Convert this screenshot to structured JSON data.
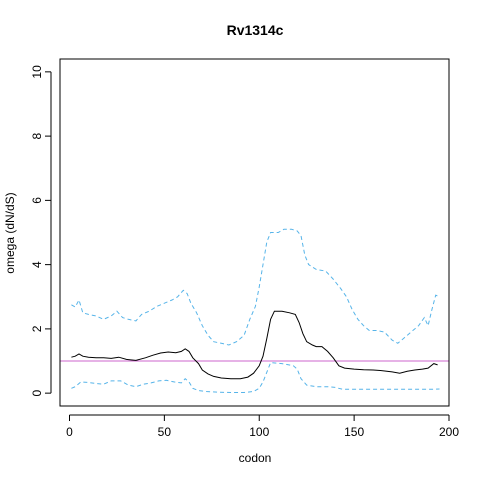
{
  "chart_data": {
    "type": "line",
    "title": "Rv1314c",
    "xlabel": "codon",
    "ylabel": "omega (dN/dS)",
    "xlim": [
      -5,
      200
    ],
    "ylim": [
      -0.4,
      10.4
    ],
    "xticks": [
      0,
      50,
      100,
      150,
      200
    ],
    "yticks": [
      0,
      2,
      4,
      6,
      8,
      10
    ],
    "reference_line": {
      "y": 1,
      "color": "#cc66cc"
    },
    "series": [
      {
        "role": "estimate",
        "color": "#000000",
        "dash": "solid",
        "points": [
          [
            1,
            1.12
          ],
          [
            3,
            1.15
          ],
          [
            5,
            1.22
          ],
          [
            7,
            1.15
          ],
          [
            10,
            1.12
          ],
          [
            14,
            1.1
          ],
          [
            18,
            1.1
          ],
          [
            22,
            1.08
          ],
          [
            26,
            1.12
          ],
          [
            30,
            1.05
          ],
          [
            35,
            1.02
          ],
          [
            40,
            1.1
          ],
          [
            44,
            1.18
          ],
          [
            48,
            1.25
          ],
          [
            52,
            1.28
          ],
          [
            56,
            1.26
          ],
          [
            59,
            1.3
          ],
          [
            61,
            1.38
          ],
          [
            63,
            1.3
          ],
          [
            65,
            1.1
          ],
          [
            68,
            0.92
          ],
          [
            70,
            0.72
          ],
          [
            73,
            0.6
          ],
          [
            76,
            0.52
          ],
          [
            80,
            0.47
          ],
          [
            85,
            0.45
          ],
          [
            90,
            0.45
          ],
          [
            94,
            0.5
          ],
          [
            97,
            0.62
          ],
          [
            100,
            0.85
          ],
          [
            102,
            1.15
          ],
          [
            104,
            1.7
          ],
          [
            106,
            2.3
          ],
          [
            108,
            2.55
          ],
          [
            112,
            2.55
          ],
          [
            116,
            2.5
          ],
          [
            119,
            2.45
          ],
          [
            121,
            2.2
          ],
          [
            123,
            1.85
          ],
          [
            125,
            1.6
          ],
          [
            128,
            1.5
          ],
          [
            130,
            1.45
          ],
          [
            133,
            1.45
          ],
          [
            136,
            1.3
          ],
          [
            139,
            1.1
          ],
          [
            142,
            0.85
          ],
          [
            145,
            0.78
          ],
          [
            150,
            0.75
          ],
          [
            155,
            0.73
          ],
          [
            160,
            0.72
          ],
          [
            165,
            0.7
          ],
          [
            170,
            0.66
          ],
          [
            174,
            0.62
          ],
          [
            178,
            0.68
          ],
          [
            182,
            0.72
          ],
          [
            186,
            0.75
          ],
          [
            189,
            0.78
          ],
          [
            192,
            0.92
          ],
          [
            194,
            0.88
          ]
        ]
      },
      {
        "role": "upper bound",
        "color": "#56b4e9",
        "dash": "dashed",
        "points": [
          [
            1,
            2.75
          ],
          [
            3,
            2.68
          ],
          [
            5,
            2.9
          ],
          [
            7,
            2.5
          ],
          [
            10,
            2.45
          ],
          [
            14,
            2.4
          ],
          [
            18,
            2.3
          ],
          [
            22,
            2.4
          ],
          [
            25,
            2.55
          ],
          [
            28,
            2.35
          ],
          [
            31,
            2.3
          ],
          [
            35,
            2.25
          ],
          [
            38,
            2.45
          ],
          [
            42,
            2.55
          ],
          [
            46,
            2.7
          ],
          [
            50,
            2.8
          ],
          [
            54,
            2.9
          ],
          [
            57,
            3.0
          ],
          [
            60,
            3.2
          ],
          [
            62,
            3.1
          ],
          [
            64,
            2.8
          ],
          [
            67,
            2.5
          ],
          [
            70,
            2.1
          ],
          [
            73,
            1.8
          ],
          [
            76,
            1.6
          ],
          [
            80,
            1.55
          ],
          [
            84,
            1.5
          ],
          [
            88,
            1.6
          ],
          [
            92,
            1.8
          ],
          [
            95,
            2.3
          ],
          [
            98,
            2.7
          ],
          [
            100,
            3.3
          ],
          [
            102,
            4.0
          ],
          [
            104,
            4.7
          ],
          [
            106,
            5.0
          ],
          [
            110,
            5.0
          ],
          [
            113,
            5.1
          ],
          [
            117,
            5.1
          ],
          [
            120,
            5.05
          ],
          [
            122,
            4.9
          ],
          [
            124,
            4.3
          ],
          [
            126,
            4.0
          ],
          [
            130,
            3.85
          ],
          [
            135,
            3.8
          ],
          [
            139,
            3.55
          ],
          [
            143,
            3.25
          ],
          [
            146,
            3.0
          ],
          [
            149,
            2.6
          ],
          [
            152,
            2.3
          ],
          [
            155,
            2.1
          ],
          [
            158,
            1.95
          ],
          [
            162,
            1.95
          ],
          [
            166,
            1.9
          ],
          [
            170,
            1.65
          ],
          [
            173,
            1.55
          ],
          [
            176,
            1.7
          ],
          [
            180,
            1.9
          ],
          [
            184,
            2.1
          ],
          [
            187,
            2.35
          ],
          [
            189,
            2.1
          ],
          [
            191,
            2.6
          ],
          [
            193,
            3.05
          ],
          [
            195,
            3.0
          ]
        ]
      },
      {
        "role": "lower bound",
        "color": "#56b4e9",
        "dash": "dashed",
        "points": [
          [
            1,
            0.15
          ],
          [
            3,
            0.2
          ],
          [
            6,
            0.35
          ],
          [
            10,
            0.33
          ],
          [
            14,
            0.3
          ],
          [
            18,
            0.28
          ],
          [
            22,
            0.38
          ],
          [
            27,
            0.38
          ],
          [
            31,
            0.25
          ],
          [
            35,
            0.2
          ],
          [
            39,
            0.28
          ],
          [
            43,
            0.32
          ],
          [
            47,
            0.38
          ],
          [
            51,
            0.4
          ],
          [
            55,
            0.35
          ],
          [
            59,
            0.32
          ],
          [
            61,
            0.45
          ],
          [
            63,
            0.35
          ],
          [
            65,
            0.15
          ],
          [
            68,
            0.08
          ],
          [
            72,
            0.05
          ],
          [
            78,
            0.03
          ],
          [
            85,
            0.02
          ],
          [
            92,
            0.02
          ],
          [
            97,
            0.05
          ],
          [
            100,
            0.15
          ],
          [
            102,
            0.35
          ],
          [
            104,
            0.65
          ],
          [
            106,
            0.95
          ],
          [
            112,
            0.92
          ],
          [
            118,
            0.85
          ],
          [
            120,
            0.75
          ],
          [
            122,
            0.45
          ],
          [
            125,
            0.25
          ],
          [
            130,
            0.2
          ],
          [
            136,
            0.2
          ],
          [
            140,
            0.18
          ],
          [
            144,
            0.12
          ],
          [
            150,
            0.12
          ],
          [
            160,
            0.12
          ],
          [
            170,
            0.12
          ],
          [
            180,
            0.12
          ],
          [
            190,
            0.12
          ],
          [
            195,
            0.13
          ]
        ]
      }
    ]
  }
}
